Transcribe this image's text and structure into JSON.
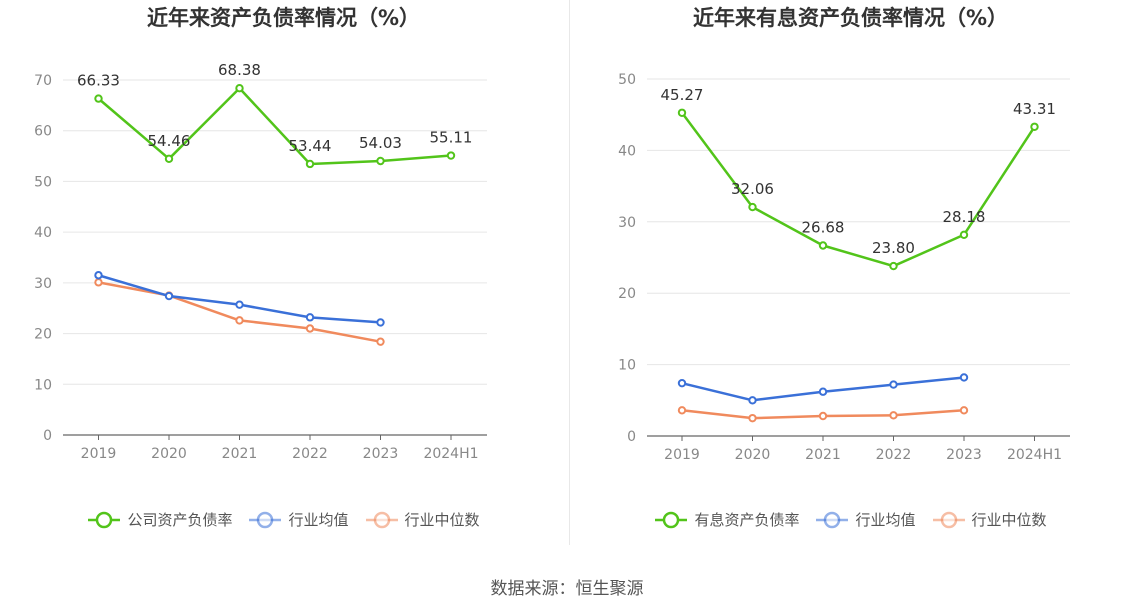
{
  "charts": [
    {
      "title": "近年来资产负债率情况（%）",
      "chart_data": {
        "type": "line",
        "title": "近年来资产负债率情况（%）",
        "categories": [
          "2019",
          "2020",
          "2021",
          "2022",
          "2023",
          "2024H1"
        ],
        "ylim": [
          0,
          70
        ],
        "yticks": [
          0,
          10,
          20,
          30,
          40,
          50,
          60,
          70
        ],
        "grid": true,
        "legend_position": "bottom",
        "series": [
          {
            "name": "公司资产负债率",
            "color": "#52c41a",
            "labeled": true,
            "values": [
              66.33,
              54.46,
              68.38,
              53.44,
              54.03,
              55.11
            ],
            "labels": [
              "66.33",
              "54.46",
              "68.38",
              "53.44",
              "54.03",
              "55.11"
            ]
          },
          {
            "name": "行业均值",
            "color": "#3a70d8",
            "labeled": false,
            "values": [
              31.5,
              27.4,
              25.7,
              23.2,
              22.2,
              null
            ]
          },
          {
            "name": "行业中位数",
            "color": "#f08a5d",
            "labeled": false,
            "values": [
              30.1,
              27.5,
              22.6,
              21.0,
              18.4,
              null
            ]
          }
        ]
      }
    },
    {
      "title": "近年来有息资产负债率情况（%）",
      "chart_data": {
        "type": "line",
        "title": "近年来有息资产负债率情况（%）",
        "categories": [
          "2019",
          "2020",
          "2021",
          "2022",
          "2023",
          "2024H1"
        ],
        "ylim": [
          0,
          50
        ],
        "yticks": [
          0,
          10,
          20,
          30,
          40,
          50
        ],
        "grid": true,
        "legend_position": "bottom",
        "series": [
          {
            "name": "有息资产负债率",
            "color": "#52c41a",
            "labeled": true,
            "values": [
              45.27,
              32.06,
              26.68,
              23.8,
              28.18,
              43.31
            ],
            "labels": [
              "45.27",
              "32.06",
              "26.68",
              "23.80",
              "28.18",
              "43.31"
            ]
          },
          {
            "name": "行业均值",
            "color": "#3a70d8",
            "labeled": false,
            "values": [
              7.4,
              5.0,
              6.2,
              7.2,
              8.2,
              null
            ]
          },
          {
            "name": "行业中位数",
            "color": "#f08a5d",
            "labeled": false,
            "values": [
              3.6,
              2.5,
              2.8,
              2.9,
              3.6,
              null
            ]
          }
        ]
      }
    }
  ],
  "source": "数据来源：恒生聚源"
}
